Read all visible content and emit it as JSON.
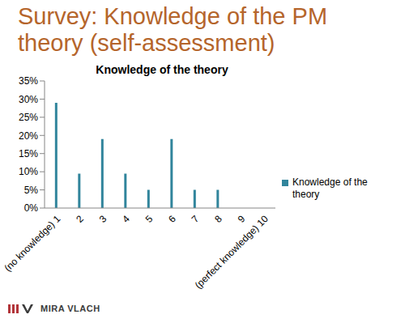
{
  "slide": {
    "title": "Survey: Knowledge of the PM theory (self-assessment)",
    "footer": "MIRA VLACH"
  },
  "chart_data": {
    "type": "bar",
    "title": "Knowledge of the theory",
    "categories": [
      "(no knowledge) 1",
      "2",
      "3",
      "4",
      "5",
      "6",
      "7",
      "8",
      "9",
      "(perfect knowledge) 10"
    ],
    "series": [
      {
        "name": "Knowledge of the theory",
        "color": "#31859c",
        "values": [
          29,
          9.5,
          19,
          9.5,
          5,
          19,
          5,
          5,
          0,
          0
        ]
      }
    ],
    "ylim": [
      0,
      35
    ],
    "yticks": [
      {
        "value": 0,
        "label": "0%"
      },
      {
        "value": 5,
        "label": "5%"
      },
      {
        "value": 10,
        "label": "10%"
      },
      {
        "value": 15,
        "label": "15%"
      },
      {
        "value": 20,
        "label": "20%"
      },
      {
        "value": 25,
        "label": "25%"
      },
      {
        "value": 30,
        "label": "30%"
      },
      {
        "value": 35,
        "label": "35%"
      }
    ],
    "grid": false,
    "legend": "right"
  }
}
